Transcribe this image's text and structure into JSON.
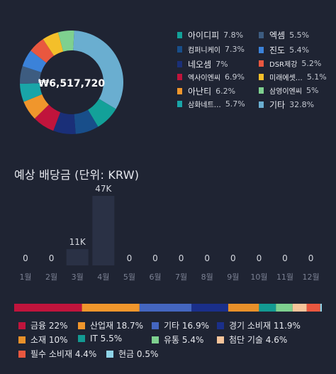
{
  "donut": {
    "total": "₩6,517,720",
    "segments": [
      {
        "name": "아이디피",
        "pct": "7.8%",
        "value": 7.8,
        "color": "#13a199"
      },
      {
        "name": "컴퍼니케이",
        "pct": "7.3%",
        "value": 7.3,
        "color": "#184e8a"
      },
      {
        "name": "네오셈",
        "pct": "7%",
        "value": 7.0,
        "color": "#1a2f78"
      },
      {
        "name": "엑사이엔씨",
        "pct": "6.9%",
        "value": 6.9,
        "color": "#c0143c"
      },
      {
        "name": "아난티",
        "pct": "6.2%",
        "value": 6.2,
        "color": "#f0962c"
      },
      {
        "name": "삼화네트…",
        "pct": "5.7%",
        "value": 5.7,
        "color": "#19a5a8"
      },
      {
        "name": "엑셈",
        "pct": "5.5%",
        "value": 5.5,
        "color": "#3d5c80"
      },
      {
        "name": "진도",
        "pct": "5.4%",
        "value": 5.4,
        "color": "#3b82d9"
      },
      {
        "name": "DSR제강",
        "pct": "5.2%",
        "value": 5.2,
        "color": "#e9573f"
      },
      {
        "name": "미래에셋…",
        "pct": "5.1%",
        "value": 5.1,
        "color": "#f4bf2a"
      },
      {
        "name": "삼영이엔씨",
        "pct": "5%",
        "value": 5.0,
        "color": "#7ed08f"
      },
      {
        "name": "기타",
        "pct": "32.8%",
        "value": 32.8,
        "color": "#6aaed0"
      }
    ]
  },
  "dividend": {
    "title": "예상 배당금 (단위: KRW)",
    "chart_data": {
      "type": "bar",
      "categories": [
        "1월",
        "2월",
        "3월",
        "4월",
        "5월",
        "6월",
        "7월",
        "8월",
        "9월",
        "10월",
        "11월",
        "12월"
      ],
      "values": [
        0,
        0,
        11000,
        47000,
        0,
        0,
        0,
        0,
        0,
        0,
        0,
        0
      ],
      "labels": [
        "0",
        "0",
        "11K",
        "47K",
        "0",
        "0",
        "0",
        "0",
        "0",
        "0",
        "0",
        "0"
      ],
      "title": "예상 배당금 (단위: KRW)",
      "bar_color": "#2a3145"
    }
  },
  "sectors": {
    "items": [
      {
        "name": "금융",
        "pct": "22%",
        "value": 22,
        "color": "#c0143c"
      },
      {
        "name": "산업재",
        "pct": "18.7%",
        "value": 18.7,
        "color": "#f0962c"
      },
      {
        "name": "기타",
        "pct": "16.9%",
        "value": 16.9,
        "color": "#4466c0"
      },
      {
        "name": "경기 소비재",
        "pct": "11.9%",
        "value": 11.9,
        "color": "#1a2f8a"
      },
      {
        "name": "소재",
        "pct": "10%",
        "value": 10,
        "color": "#e8902a"
      },
      {
        "name": "IT",
        "pct": "5.5%",
        "value": 5.5,
        "color": "#139a92"
      },
      {
        "name": "유통",
        "pct": "5.4%",
        "value": 5.4,
        "color": "#7ed08f"
      },
      {
        "name": "첨단 기술",
        "pct": "4.6%",
        "value": 4.6,
        "color": "#f6c49a"
      },
      {
        "name": "필수 소비재",
        "pct": "4.4%",
        "value": 4.4,
        "color": "#e9573f"
      },
      {
        "name": "현금",
        "pct": "0.5%",
        "value": 0.5,
        "color": "#8fd4e8"
      }
    ]
  }
}
